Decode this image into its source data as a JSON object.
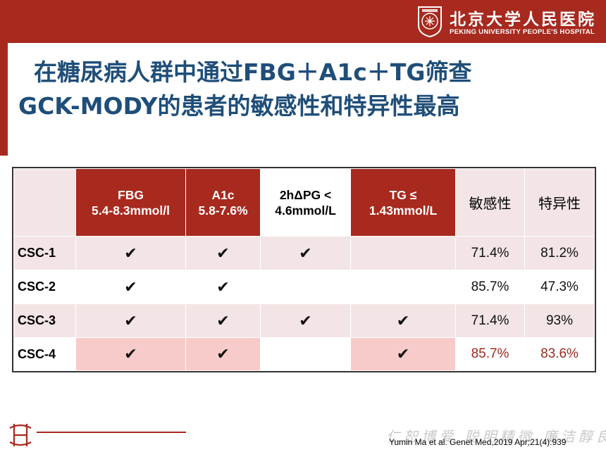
{
  "header": {
    "logo_cn": "北京大学人民医院",
    "logo_en": "PEKING UNIVERSITY PEOPLE'S HOSPITAL"
  },
  "title": {
    "line1": "在糖尿病人群中通过FBG＋A1c＋TG筛查",
    "line2": "GCK-MODY的患者的敏感性和特异性最高"
  },
  "table": {
    "columns": [
      {
        "line1": "FBG",
        "line2": "5.4-8.3mmol/l"
      },
      {
        "line1": "A1c",
        "line2": "5.8-7.6%"
      },
      {
        "line1": "2hΔPG <",
        "line2": "4.6mmol/L"
      },
      {
        "line1": "TG ≤",
        "line2": "1.43mmol/L"
      },
      {
        "line1": "敏感性",
        "line2": ""
      },
      {
        "line1": "特异性",
        "line2": ""
      }
    ],
    "rows": [
      {
        "label": "CSC-1",
        "fbg": "✔",
        "a1c": "✔",
        "pg": "✔",
        "tg": "",
        "sens": "71.4%",
        "spec": "81.2%"
      },
      {
        "label": "CSC-2",
        "fbg": "✔",
        "a1c": "✔",
        "pg": "",
        "tg": "",
        "sens": "85.7%",
        "spec": "47.3%"
      },
      {
        "label": "CSC-3",
        "fbg": "✔",
        "a1c": "✔",
        "pg": "✔",
        "tg": "✔",
        "sens": "71.4%",
        "spec": "93%"
      },
      {
        "label": "CSC-4",
        "fbg": "✔",
        "a1c": "✔",
        "pg": "",
        "tg": "✔",
        "sens": "85.7%",
        "spec": "83.6%"
      }
    ]
  },
  "footer": {
    "motto": "仁恕博爱 聪明精微 廉洁醇良",
    "citation": "Yumin Ma et al. Genet Med,2019 Apr;21(4):939"
  },
  "colors": {
    "brand_red": "#a8291e",
    "title_blue": "#1f4e79",
    "row_tint": "#f3e5e5",
    "highlight_pink": "#f8cbcb"
  }
}
